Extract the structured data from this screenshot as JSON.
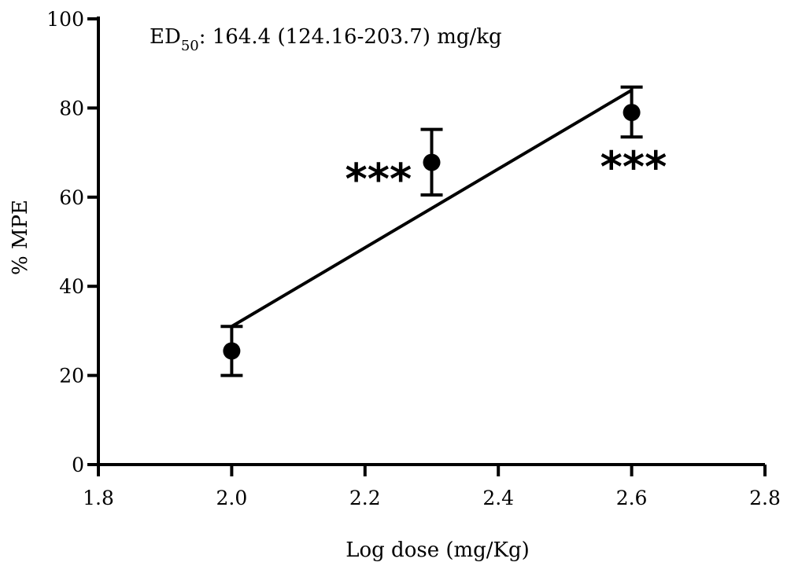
{
  "chart_data": {
    "type": "scatter",
    "title": "",
    "xlabel": "Log dose (mg/Kg)",
    "ylabel": "% MPE",
    "xlim": [
      1.8,
      2.8
    ],
    "ylim": [
      0,
      100
    ],
    "xticks": [
      1.8,
      2.0,
      2.2,
      2.4,
      2.6,
      2.8
    ],
    "xtick_labels": [
      "1.8",
      "2.0",
      "2.2",
      "2.4",
      "2.6",
      "2.8"
    ],
    "yticks": [
      0,
      20,
      40,
      60,
      80,
      100
    ],
    "ytick_labels": [
      "0",
      "20",
      "40",
      "60",
      "80",
      "100"
    ],
    "grid": false,
    "points": [
      {
        "x": 2.0,
        "y": 25.5,
        "err_low": 20.0,
        "err_high": 31.0,
        "sig": ""
      },
      {
        "x": 2.3,
        "y": 67.8,
        "err_low": 60.5,
        "err_high": 75.2,
        "sig": "***"
      },
      {
        "x": 2.6,
        "y": 79.0,
        "err_low": 73.5,
        "err_high": 84.7,
        "sig": "***"
      }
    ],
    "fit_line": {
      "x": [
        2.0,
        2.6
      ],
      "y": [
        31.0,
        84.0
      ]
    },
    "annotation": {
      "prefix": "ED",
      "subscript": "50",
      "text": ": 164.4 (124.16-203.7) mg/kg"
    }
  }
}
